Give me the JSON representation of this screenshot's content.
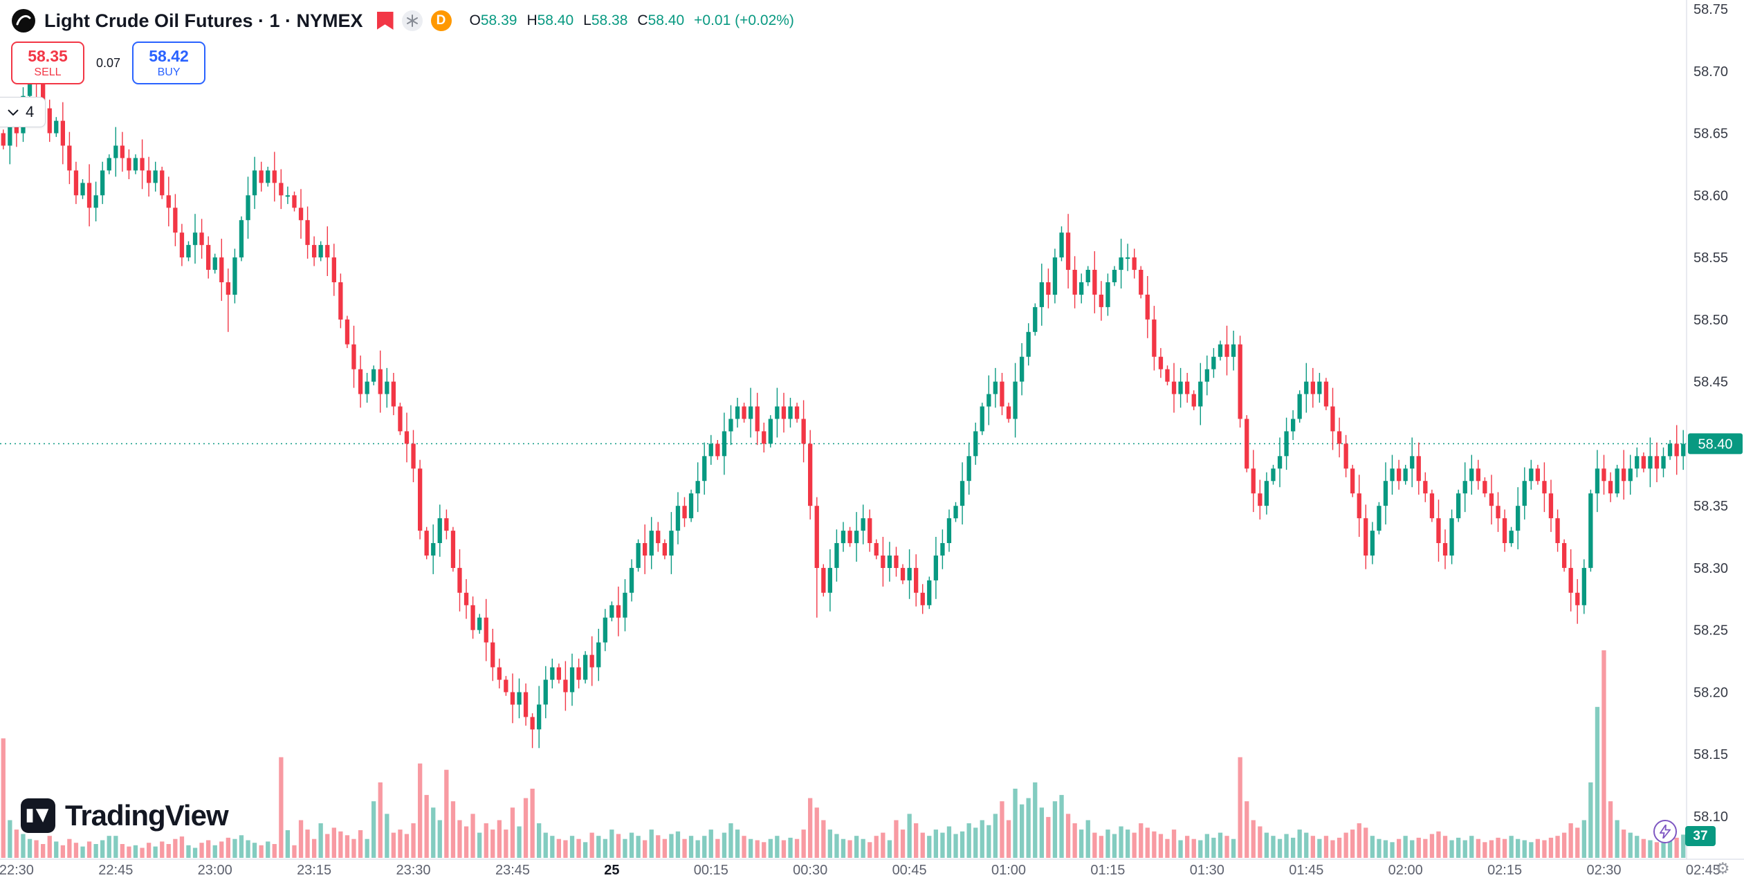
{
  "header": {
    "symbol_title": "Light Crude Oil Futures · 1 · NYMEX",
    "delayed_badge": "D",
    "ohlc": {
      "open_label": "O",
      "open_value": "58.39",
      "high_label": "H",
      "high_value": "58.40",
      "low_label": "L",
      "low_value": "58.38",
      "close_label": "C",
      "close_value": "58.40",
      "change_value": "+0.01 (+0.02%)"
    }
  },
  "trade_panel": {
    "sell_price": "58.35",
    "sell_label": "SELL",
    "spread": "0.07",
    "buy_price": "58.42",
    "buy_label": "BUY"
  },
  "toolbar": {
    "dropdown_value": "4"
  },
  "watermark": {
    "brand": "TradingView"
  },
  "footer": {
    "volume_badge": "37"
  },
  "colors": {
    "up": "#089981",
    "down": "#F23645",
    "buy_blue": "#2962FF",
    "sell_red": "#F23645",
    "delayed_orange": "#FF9800",
    "flash_purple": "#7E57C2"
  },
  "chart_data": {
    "type": "candlestick",
    "title": "Light Crude Oil Futures, 1, NYMEX",
    "symbol": "Light Crude Oil Futures",
    "interval": "1 minute",
    "exchange": "NYMEX",
    "x_start_time": "22:28",
    "x_minutes_per_candle": 1,
    "last_price": "58.40",
    "up_color": "#089981",
    "down_color": "#F23645",
    "price_axis_labels": [
      "58.75",
      "58.70",
      "58.65",
      "58.60",
      "58.55",
      "58.50",
      "58.45",
      "58.40",
      "58.35",
      "58.30",
      "58.25",
      "58.20",
      "58.15",
      "58.10"
    ],
    "time_ticks": [
      {
        "label": "22:30",
        "index": 2
      },
      {
        "label": "22:45",
        "index": 17
      },
      {
        "label": "23:00",
        "index": 32
      },
      {
        "label": "23:15",
        "index": 47
      },
      {
        "label": "23:30",
        "index": 62
      },
      {
        "label": "23:45",
        "index": 77
      },
      {
        "label": "25",
        "index": 92,
        "bold": true
      },
      {
        "label": "00:15",
        "index": 107
      },
      {
        "label": "00:30",
        "index": 122
      },
      {
        "label": "00:45",
        "index": 137
      },
      {
        "label": "01:00",
        "index": 152
      },
      {
        "label": "01:15",
        "index": 167
      },
      {
        "label": "01:30",
        "index": 182
      },
      {
        "label": "01:45",
        "index": 197
      },
      {
        "label": "02:00",
        "index": 212
      },
      {
        "label": "02:15",
        "index": 227
      },
      {
        "label": "02:30",
        "index": 242
      },
      {
        "label": "02:45",
        "index": 257
      }
    ],
    "closes": [
      58.64,
      58.66,
      58.65,
      58.68,
      58.7,
      58.69,
      58.67,
      58.65,
      58.66,
      58.64,
      58.62,
      58.6,
      58.61,
      58.59,
      58.6,
      58.62,
      58.63,
      58.64,
      58.63,
      58.62,
      58.63,
      58.62,
      58.61,
      58.62,
      58.6,
      58.59,
      58.57,
      58.55,
      58.56,
      58.57,
      58.56,
      58.54,
      58.55,
      58.53,
      58.52,
      58.55,
      58.58,
      58.6,
      58.62,
      58.61,
      58.62,
      58.61,
      58.6,
      58.6,
      58.59,
      58.58,
      58.56,
      58.55,
      58.56,
      58.55,
      58.53,
      58.5,
      58.48,
      58.46,
      58.44,
      58.45,
      58.46,
      58.44,
      58.45,
      58.43,
      58.41,
      58.4,
      58.38,
      58.33,
      58.31,
      58.32,
      58.34,
      58.33,
      58.3,
      58.28,
      58.27,
      58.25,
      58.26,
      58.24,
      58.22,
      58.21,
      58.2,
      58.19,
      58.2,
      58.18,
      58.17,
      58.19,
      58.21,
      58.22,
      58.21,
      58.2,
      58.22,
      58.21,
      58.23,
      58.22,
      58.24,
      58.26,
      58.27,
      58.26,
      58.28,
      58.3,
      58.32,
      58.31,
      58.33,
      58.32,
      58.31,
      58.33,
      58.35,
      58.34,
      58.36,
      58.37,
      58.39,
      58.4,
      58.39,
      58.41,
      58.42,
      58.43,
      58.42,
      58.43,
      58.41,
      58.4,
      58.42,
      58.43,
      58.42,
      58.43,
      58.42,
      58.4,
      58.35,
      58.3,
      58.28,
      58.3,
      58.32,
      58.33,
      58.32,
      58.33,
      58.34,
      58.32,
      58.31,
      58.3,
      58.31,
      58.3,
      58.29,
      58.3,
      58.28,
      58.27,
      58.29,
      58.31,
      58.32,
      58.34,
      58.35,
      58.37,
      58.39,
      58.41,
      58.43,
      58.44,
      58.45,
      58.43,
      58.42,
      58.45,
      58.47,
      58.49,
      58.51,
      58.53,
      58.52,
      58.55,
      58.57,
      58.54,
      58.52,
      58.53,
      58.54,
      58.52,
      58.51,
      58.53,
      58.54,
      58.55,
      58.55,
      58.54,
      58.52,
      58.5,
      58.47,
      58.46,
      58.45,
      58.44,
      58.45,
      58.44,
      58.43,
      58.45,
      58.46,
      58.47,
      58.48,
      58.47,
      58.48,
      58.42,
      58.38,
      58.36,
      58.35,
      58.37,
      58.38,
      58.39,
      58.41,
      58.42,
      58.44,
      58.45,
      58.44,
      58.45,
      58.43,
      58.41,
      58.4,
      58.38,
      58.36,
      58.34,
      58.31,
      58.33,
      58.35,
      58.37,
      58.38,
      58.37,
      58.38,
      58.39,
      58.37,
      58.36,
      58.34,
      58.32,
      58.31,
      58.34,
      58.36,
      58.37,
      58.38,
      58.37,
      58.36,
      58.35,
      58.34,
      58.32,
      58.33,
      58.35,
      58.37,
      58.38,
      58.37,
      58.36,
      58.34,
      58.32,
      58.3,
      58.28,
      58.27,
      58.3,
      58.36,
      58.38,
      58.37,
      58.36,
      58.38,
      58.37,
      58.38,
      58.39,
      58.38,
      58.39,
      58.38,
      58.39,
      58.4,
      58.39,
      58.4
    ],
    "volumes": [
      190,
      60,
      45,
      38,
      30,
      28,
      22,
      35,
      26,
      20,
      30,
      24,
      18,
      26,
      22,
      28,
      35,
      35,
      22,
      18,
      20,
      16,
      24,
      18,
      26,
      22,
      30,
      34,
      20,
      16,
      24,
      28,
      20,
      26,
      32,
      30,
      36,
      28,
      24,
      20,
      26,
      22,
      160,
      44,
      20,
      60,
      45,
      30,
      55,
      38,
      48,
      42,
      36,
      30,
      44,
      30,
      90,
      120,
      70,
      40,
      45,
      38,
      55,
      150,
      100,
      80,
      60,
      140,
      90,
      60,
      50,
      70,
      40,
      55,
      45,
      60,
      45,
      80,
      50,
      95,
      110,
      55,
      40,
      35,
      30,
      28,
      35,
      30,
      25,
      40,
      35,
      30,
      45,
      38,
      30,
      40,
      35,
      28,
      45,
      36,
      30,
      38,
      42,
      30,
      35,
      28,
      35,
      45,
      30,
      40,
      55,
      45,
      35,
      30,
      28,
      25,
      30,
      35,
      28,
      32,
      30,
      45,
      95,
      80,
      60,
      45,
      38,
      30,
      28,
      35,
      30,
      25,
      35,
      40,
      28,
      60,
      45,
      70,
      55,
      40,
      35,
      45,
      40,
      50,
      38,
      42,
      55,
      48,
      60,
      52,
      70,
      90,
      60,
      110,
      85,
      95,
      120,
      80,
      65,
      90,
      100,
      70,
      55,
      45,
      60,
      40,
      35,
      45,
      38,
      50,
      45,
      40,
      55,
      48,
      42,
      38,
      30,
      45,
      28,
      35,
      30,
      28,
      38,
      32,
      40,
      35,
      30,
      160,
      90,
      60,
      50,
      40,
      35,
      30,
      38,
      32,
      45,
      40,
      35,
      30,
      35,
      28,
      32,
      40,
      45,
      55,
      48,
      35,
      30,
      28,
      25,
      30,
      35,
      28,
      32,
      30,
      38,
      42,
      35,
      28,
      32,
      28,
      35,
      30,
      25,
      28,
      32,
      30,
      35,
      30,
      28,
      25,
      30,
      28,
      32,
      35,
      40,
      55,
      48,
      60,
      120,
      240,
      330,
      90,
      60,
      45,
      40,
      35,
      30,
      28,
      25,
      30,
      28,
      32,
      37
    ],
    "wick_overrides": {
      "4": {
        "high": 58.715
      },
      "34": {
        "low": 58.49
      },
      "80": {
        "low": 58.155
      },
      "123": {
        "low": 58.26
      },
      "160": {
        "high": 58.575
      },
      "238": {
        "low": 58.255
      }
    }
  }
}
